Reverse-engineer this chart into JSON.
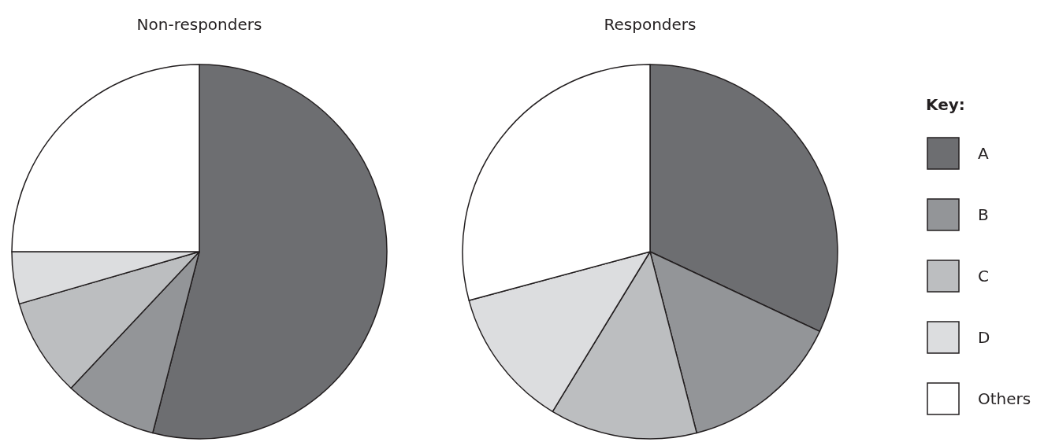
{
  "chart_data": [
    {
      "type": "pie",
      "title": "Non-responders",
      "categories": [
        null,
        null,
        null,
        null,
        null
      ],
      "values": [
        54,
        8,
        8.5,
        4.5,
        25
      ],
      "colors": [
        "#6d6e71",
        "#939598",
        "#bcbec0",
        "#dcdddf",
        "#ffffff"
      ]
    },
    {
      "type": "pie",
      "title": "Responders",
      "categories": [
        "A",
        "B",
        "C",
        "D",
        "Others"
      ],
      "values": [
        32,
        14,
        12.7,
        12.1,
        29.2
      ],
      "colors": [
        "#6d6e71",
        "#939598",
        "#bcbec0",
        "#dcdddf",
        "#ffffff"
      ],
      "legend": "right",
      "legend_title": "Key:"
    }
  ]
}
